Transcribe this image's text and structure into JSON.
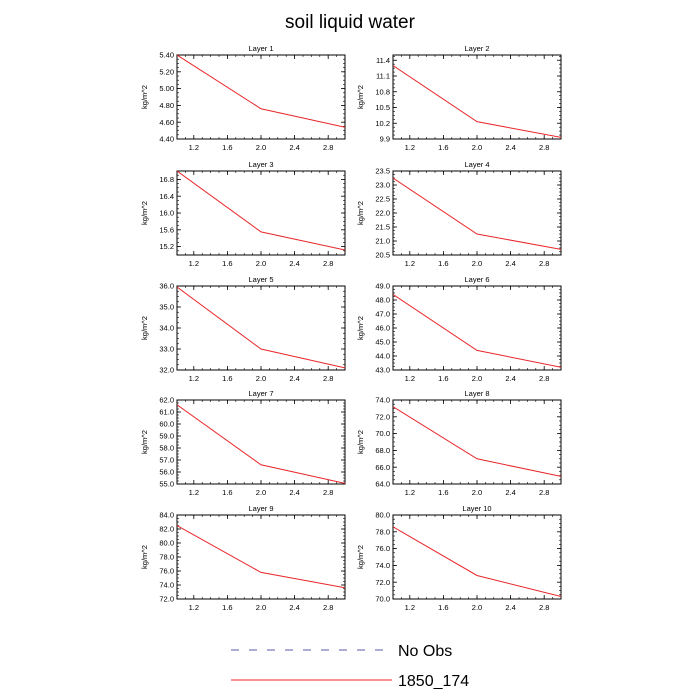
{
  "title": "soil liquid water",
  "chart_data": [
    {
      "type": "line",
      "title": "Layer 1",
      "ylabel": "kg/m^2",
      "xlim": [
        1.0,
        3.0
      ],
      "ylim": [
        4.4,
        5.4
      ],
      "xticks": [
        "1.2",
        "1.6",
        "2.0",
        "2.4",
        "2.8"
      ],
      "yticks": [
        "4.40",
        "4.60",
        "4.80",
        "5.00",
        "5.20",
        "5.40"
      ],
      "series": [
        {
          "name": "1850_174",
          "x": [
            1,
            2,
            3
          ],
          "y": [
            5.4,
            4.76,
            4.54
          ]
        }
      ]
    },
    {
      "type": "line",
      "title": "Layer 2",
      "ylabel": "kg/m^2",
      "xlim": [
        1.0,
        3.0
      ],
      "ylim": [
        9.9,
        11.5
      ],
      "xticks": [
        "1.2",
        "1.6",
        "2.0",
        "2.4",
        "2.8"
      ],
      "yticks": [
        "9.9",
        "10.2",
        "10.5",
        "10.8",
        "11.1",
        "11.4"
      ],
      "series": [
        {
          "name": "1850_174",
          "x": [
            1,
            2,
            3
          ],
          "y": [
            11.3,
            10.23,
            9.93
          ]
        }
      ]
    },
    {
      "type": "line",
      "title": "Layer 3",
      "ylabel": "kg/m^2",
      "xlim": [
        1.0,
        3.0
      ],
      "ylim": [
        15.0,
        17.0
      ],
      "xticks": [
        "1.2",
        "1.6",
        "2.0",
        "2.4",
        "2.8"
      ],
      "yticks": [
        "15.2",
        "15.6",
        "16.0",
        "16.4",
        "16.8"
      ],
      "series": [
        {
          "name": "1850_174",
          "x": [
            1,
            2,
            3
          ],
          "y": [
            17.0,
            15.55,
            15.12
          ]
        }
      ]
    },
    {
      "type": "line",
      "title": "Layer 4",
      "ylabel": "kg/m^2",
      "xlim": [
        1.0,
        3.0
      ],
      "ylim": [
        20.5,
        23.5
      ],
      "xticks": [
        "1.2",
        "1.6",
        "2.0",
        "2.4",
        "2.8"
      ],
      "yticks": [
        "20.5",
        "21.0",
        "21.5",
        "22.0",
        "22.5",
        "23.0",
        "23.5"
      ],
      "series": [
        {
          "name": "1850_174",
          "x": [
            1,
            2,
            3
          ],
          "y": [
            23.25,
            21.25,
            20.7
          ]
        }
      ]
    },
    {
      "type": "line",
      "title": "Layer 5",
      "ylabel": "kg/m^2",
      "xlim": [
        1.0,
        3.0
      ],
      "ylim": [
        32.0,
        36.0
      ],
      "xticks": [
        "1.2",
        "1.6",
        "2.0",
        "2.4",
        "2.8"
      ],
      "yticks": [
        "32.0",
        "33.0",
        "34.0",
        "35.0",
        "36.0"
      ],
      "series": [
        {
          "name": "1850_174",
          "x": [
            1,
            2,
            3
          ],
          "y": [
            35.95,
            33.0,
            32.1
          ]
        }
      ]
    },
    {
      "type": "line",
      "title": "Layer 6",
      "ylabel": "kg/m^2",
      "xlim": [
        1.0,
        3.0
      ],
      "ylim": [
        43.0,
        49.0
      ],
      "xticks": [
        "1.2",
        "1.6",
        "2.0",
        "2.4",
        "2.8"
      ],
      "yticks": [
        "43.0",
        "44.0",
        "45.0",
        "46.0",
        "47.0",
        "48.0",
        "49.0"
      ],
      "series": [
        {
          "name": "1850_174",
          "x": [
            1,
            2,
            3
          ],
          "y": [
            48.4,
            44.4,
            43.2
          ]
        }
      ]
    },
    {
      "type": "line",
      "title": "Layer 7",
      "ylabel": "kg/m^2",
      "xlim": [
        1.0,
        3.0
      ],
      "ylim": [
        55.0,
        62.0
      ],
      "xticks": [
        "1.2",
        "1.6",
        "2.0",
        "2.4",
        "2.8"
      ],
      "yticks": [
        "55.0",
        "56.0",
        "57.0",
        "58.0",
        "59.0",
        "60.0",
        "61.0",
        "62.0"
      ],
      "series": [
        {
          "name": "1850_174",
          "x": [
            1,
            2,
            3
          ],
          "y": [
            61.6,
            56.6,
            55.05
          ]
        }
      ]
    },
    {
      "type": "line",
      "title": "Layer 8",
      "ylabel": "kg/m^2",
      "xlim": [
        1.0,
        3.0
      ],
      "ylim": [
        64.0,
        74.0
      ],
      "xticks": [
        "1.2",
        "1.6",
        "2.0",
        "2.4",
        "2.8"
      ],
      "yticks": [
        "64.0",
        "66.0",
        "68.0",
        "70.0",
        "72.0",
        "74.0"
      ],
      "series": [
        {
          "name": "1850_174",
          "x": [
            1,
            2,
            3
          ],
          "y": [
            73.2,
            67.0,
            64.9
          ]
        }
      ]
    },
    {
      "type": "line",
      "title": "Layer 9",
      "ylabel": "kg/m^2",
      "xlim": [
        1.0,
        3.0
      ],
      "ylim": [
        72.0,
        84.0
      ],
      "xticks": [
        "1.2",
        "1.6",
        "2.0",
        "2.4",
        "2.8"
      ],
      "yticks": [
        "72.0",
        "74.0",
        "76.0",
        "78.0",
        "80.0",
        "82.0",
        "84.0"
      ],
      "series": [
        {
          "name": "1850_174",
          "x": [
            1,
            2,
            3
          ],
          "y": [
            82.5,
            75.8,
            73.6
          ]
        }
      ]
    },
    {
      "type": "line",
      "title": "Layer 10",
      "ylabel": "kg/m^2",
      "xlim": [
        1.0,
        3.0
      ],
      "ylim": [
        70.0,
        80.0
      ],
      "xticks": [
        "1.2",
        "1.6",
        "2.0",
        "2.4",
        "2.8"
      ],
      "yticks": [
        "70.0",
        "72.0",
        "74.0",
        "76.0",
        "78.0",
        "80.0"
      ],
      "series": [
        {
          "name": "1850_174",
          "x": [
            1,
            2,
            3
          ],
          "y": [
            78.6,
            72.8,
            70.3
          ]
        }
      ]
    }
  ],
  "legend": [
    {
      "label": "No Obs",
      "color": "#5a5aa8",
      "style": "dashed"
    },
    {
      "label": "1850_174",
      "color": "#e8262a",
      "style": "solid"
    }
  ],
  "colors": {
    "line": "#e8262a",
    "axis": "#000000"
  }
}
